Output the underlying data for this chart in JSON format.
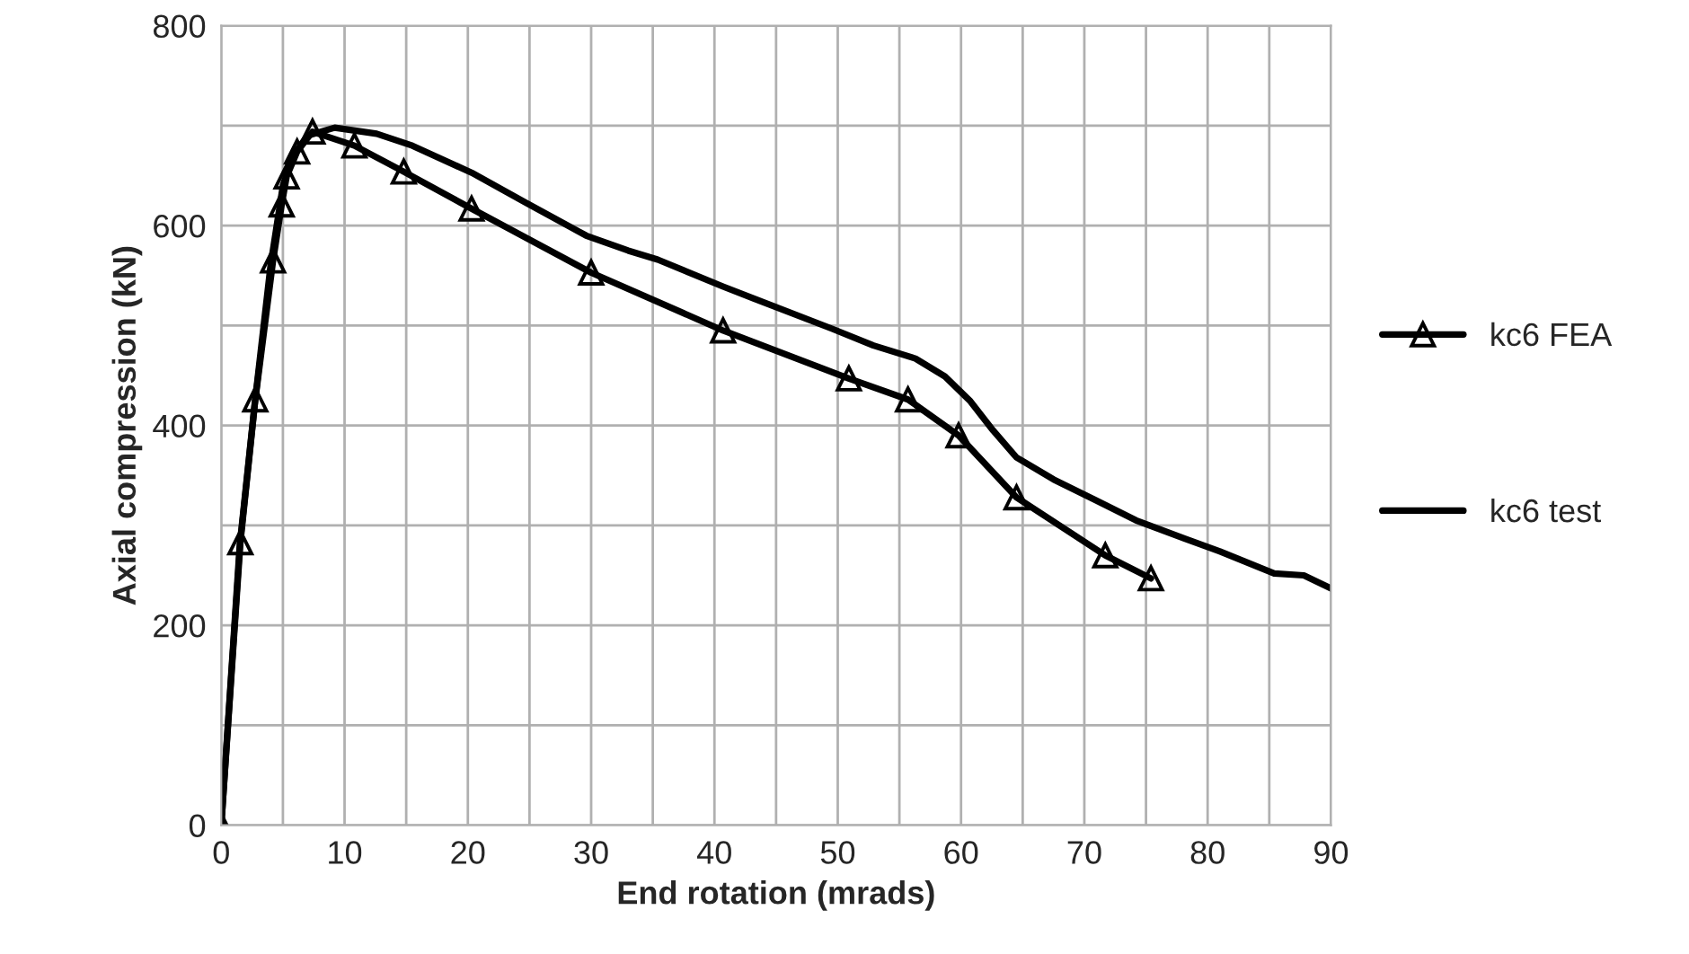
{
  "chart_data": {
    "type": "line",
    "xlabel": "End rotation (mrads)",
    "ylabel": "Axial compression (kN)",
    "xlim": [
      0,
      90
    ],
    "ylim": [
      0,
      800
    ],
    "xticks": [
      0,
      {
        "value": 5,
        "label": null
      },
      10,
      {
        "value": 15,
        "label": null
      },
      20,
      {
        "value": 25,
        "label": null
      },
      30,
      {
        "value": 35,
        "label": null
      },
      40,
      {
        "value": 45,
        "label": null
      },
      50,
      {
        "value": 55,
        "label": null
      },
      60,
      {
        "value": 65,
        "label": null
      },
      70,
      {
        "value": 75,
        "label": null
      },
      80,
      {
        "value": 85,
        "label": null
      },
      90
    ],
    "yticks": [
      0,
      {
        "value": 100,
        "label": null
      },
      200,
      {
        "value": 300,
        "label": null
      },
      400,
      {
        "value": 500,
        "label": null
      },
      600,
      {
        "value": 700,
        "label": null
      },
      800
    ],
    "grid": true,
    "legend": "right",
    "line_style": "solid",
    "series": [
      {
        "name": "kc6 FEA",
        "color": "#000000",
        "marker": "triangle",
        "x": [
          0,
          1.55,
          2.76,
          4.2,
          4.9,
          5.3,
          6.15,
          7.4,
          10.8,
          14.8,
          20.3,
          30.0,
          40.7,
          50.9,
          55.7,
          59.8,
          64.5,
          71.7,
          75.4
        ],
        "values": [
          0,
          283,
          426,
          565,
          621,
          649,
          674,
          694,
          680,
          654,
          617,
          553,
          495,
          447,
          426,
          390,
          328,
          270,
          247
        ]
      },
      {
        "name": "kc6 test",
        "color": "#000000",
        "marker": "none",
        "x": [
          0,
          1.5,
          2.7,
          4.0,
          5.0,
          5.8,
          7.0,
          9.2,
          12.6,
          15.5,
          20.3,
          24.7,
          29.6,
          33.0,
          35.4,
          40.7,
          43.2,
          49.5,
          52.9,
          56.3,
          58.7,
          60.7,
          62.6,
          64.5,
          67.5,
          70.8,
          74.2,
          78.1,
          81.0,
          85.4,
          87.8,
          90.0
        ],
        "values": [
          0,
          280,
          420,
          560,
          640,
          670,
          690,
          698,
          692,
          680,
          653,
          623,
          590,
          575,
          566,
          539,
          527,
          497,
          480,
          467,
          449,
          425,
          395,
          368,
          346,
          326,
          305,
          287,
          274,
          252,
          250,
          237
        ]
      }
    ]
  }
}
